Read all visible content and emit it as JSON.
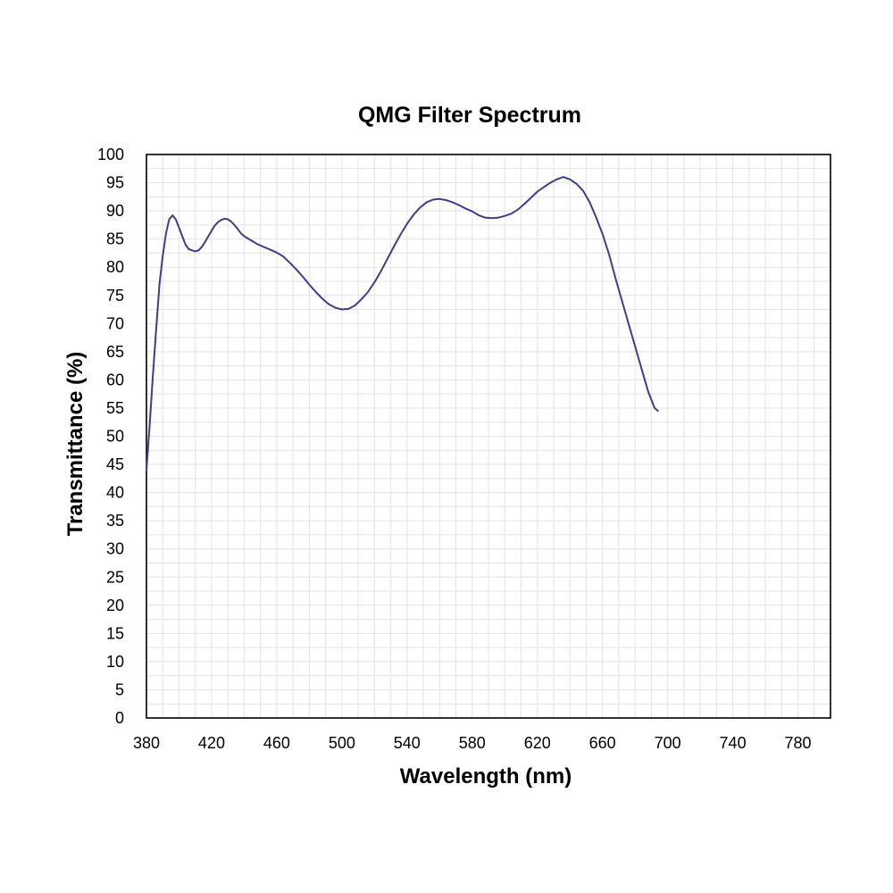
{
  "chart_data": {
    "type": "line",
    "title": "QMG Filter Spectrum",
    "xlabel": "Wavelength (nm)",
    "ylabel": "Transmittance (%)",
    "xlim": [
      380,
      800
    ],
    "ylim": [
      0,
      100
    ],
    "x_ticks": [
      380,
      420,
      460,
      500,
      540,
      580,
      620,
      660,
      700,
      740,
      780
    ],
    "y_ticks": [
      0,
      5,
      10,
      15,
      20,
      25,
      30,
      35,
      40,
      45,
      50,
      55,
      60,
      65,
      70,
      75,
      80,
      85,
      90,
      95,
      100
    ],
    "x_minor_step": 10,
    "y_minor_step": 2.5,
    "grid": true,
    "legend": "none",
    "series": [
      {
        "color": "#3d3d8f",
        "points": [
          [
            380,
            44
          ],
          [
            382,
            52
          ],
          [
            384,
            61
          ],
          [
            386,
            69
          ],
          [
            388,
            77
          ],
          [
            390,
            82
          ],
          [
            392,
            86
          ],
          [
            394,
            88.5
          ],
          [
            396,
            89.2
          ],
          [
            398,
            88.5
          ],
          [
            400,
            87
          ],
          [
            402,
            85.5
          ],
          [
            404,
            84
          ],
          [
            406,
            83.2
          ],
          [
            408,
            83
          ],
          [
            410,
            82.8
          ],
          [
            412,
            83
          ],
          [
            414,
            83.6
          ],
          [
            416,
            84.5
          ],
          [
            418,
            85.5
          ],
          [
            420,
            86.5
          ],
          [
            422,
            87.4
          ],
          [
            424,
            88
          ],
          [
            426,
            88.4
          ],
          [
            428,
            88.6
          ],
          [
            430,
            88.5
          ],
          [
            432,
            88.1
          ],
          [
            434,
            87.5
          ],
          [
            436,
            86.8
          ],
          [
            438,
            86
          ],
          [
            440,
            85.5
          ],
          [
            444,
            84.8
          ],
          [
            448,
            84.1
          ],
          [
            452,
            83.6
          ],
          [
            456,
            83.1
          ],
          [
            460,
            82.6
          ],
          [
            464,
            81.9
          ],
          [
            468,
            80.8
          ],
          [
            472,
            79.6
          ],
          [
            476,
            78.3
          ],
          [
            480,
            76.9
          ],
          [
            484,
            75.6
          ],
          [
            488,
            74.4
          ],
          [
            492,
            73.4
          ],
          [
            496,
            72.8
          ],
          [
            500,
            72.5
          ],
          [
            504,
            72.6
          ],
          [
            508,
            73.2
          ],
          [
            512,
            74.3
          ],
          [
            516,
            75.6
          ],
          [
            520,
            77.3
          ],
          [
            524,
            79.3
          ],
          [
            528,
            81.5
          ],
          [
            532,
            83.7
          ],
          [
            536,
            85.8
          ],
          [
            540,
            87.7
          ],
          [
            544,
            89.3
          ],
          [
            548,
            90.6
          ],
          [
            552,
            91.5
          ],
          [
            556,
            92
          ],
          [
            560,
            92.1
          ],
          [
            564,
            91.9
          ],
          [
            568,
            91.5
          ],
          [
            572,
            91
          ],
          [
            576,
            90.4
          ],
          [
            580,
            89.9
          ],
          [
            584,
            89.2
          ],
          [
            588,
            88.8
          ],
          [
            592,
            88.7
          ],
          [
            596,
            88.8
          ],
          [
            600,
            89.1
          ],
          [
            604,
            89.5
          ],
          [
            608,
            90.2
          ],
          [
            612,
            91.2
          ],
          [
            616,
            92.3
          ],
          [
            620,
            93.4
          ],
          [
            624,
            94.2
          ],
          [
            628,
            95
          ],
          [
            632,
            95.6
          ],
          [
            636,
            96
          ],
          [
            640,
            95.6
          ],
          [
            644,
            94.8
          ],
          [
            648,
            93.6
          ],
          [
            652,
            91.6
          ],
          [
            656,
            88.9
          ],
          [
            660,
            85.9
          ],
          [
            664,
            82.3
          ],
          [
            668,
            78
          ],
          [
            672,
            74
          ],
          [
            676,
            70
          ],
          [
            680,
            66
          ],
          [
            684,
            62
          ],
          [
            688,
            58
          ],
          [
            692,
            55
          ],
          [
            694,
            54.5
          ]
        ]
      }
    ]
  }
}
